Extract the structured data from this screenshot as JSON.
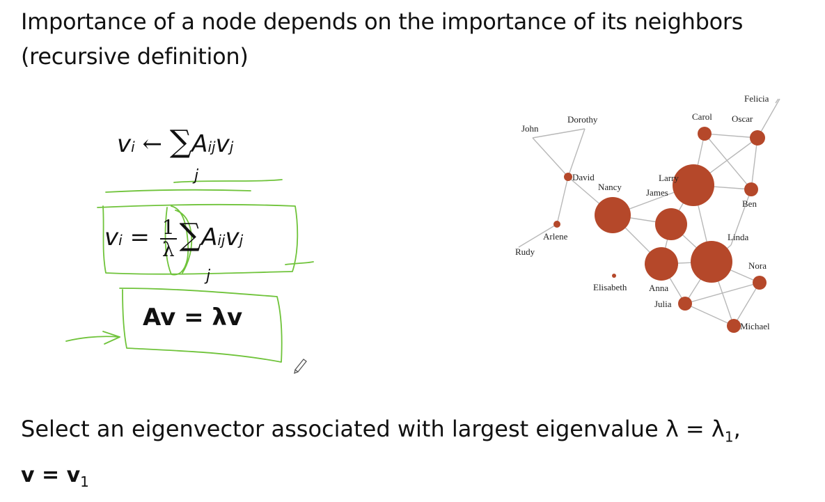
{
  "slide": {
    "title_line1": "Importance of a node depends on the importance of its neighbors",
    "title_line2": "(recursive definition)",
    "bottom_line1": "Select an eigenvector associated with largest eigenvalue λ = λ",
    "bottom_line1_sub": "1",
    "bottom_line1_end": ",",
    "bottom_line2": "v = v",
    "bottom_line2_sub": "1"
  },
  "equations": {
    "eq1": {
      "lhs": "v",
      "lhs_sub": "i",
      "arrow": "←",
      "sum": "∑",
      "term": "A",
      "term_sub": "ij",
      "var": "v",
      "var_sub": "j",
      "under": "j"
    },
    "eq2": {
      "lhs": "v",
      "lhs_sub": "i",
      "eq": "=",
      "num": "1",
      "den": "λ",
      "sum": "∑",
      "term": "A",
      "term_sub": "ij",
      "var": "v",
      "var_sub": "j",
      "under": "j"
    },
    "eq3": {
      "text": "Av = λv"
    }
  },
  "network": {
    "node_color": "#b5482a",
    "edge_color": "#b8b8b8",
    "ink_color": "#6fc33a",
    "labels": {
      "john": "John",
      "dorothy": "Dorothy",
      "david": "David",
      "nancy": "Nancy",
      "arlene": "Arlene",
      "rudy": "Rudy",
      "larry": "Larry",
      "james": "James",
      "carol": "Carol",
      "oscar": "Oscar",
      "felicia": "Felicia",
      "ben": "Ben",
      "linda": "Linda",
      "nora": "Nora",
      "elisabeth": "Elisabeth",
      "anna": "Anna",
      "julia": "Julia",
      "michael": "Michael"
    }
  }
}
